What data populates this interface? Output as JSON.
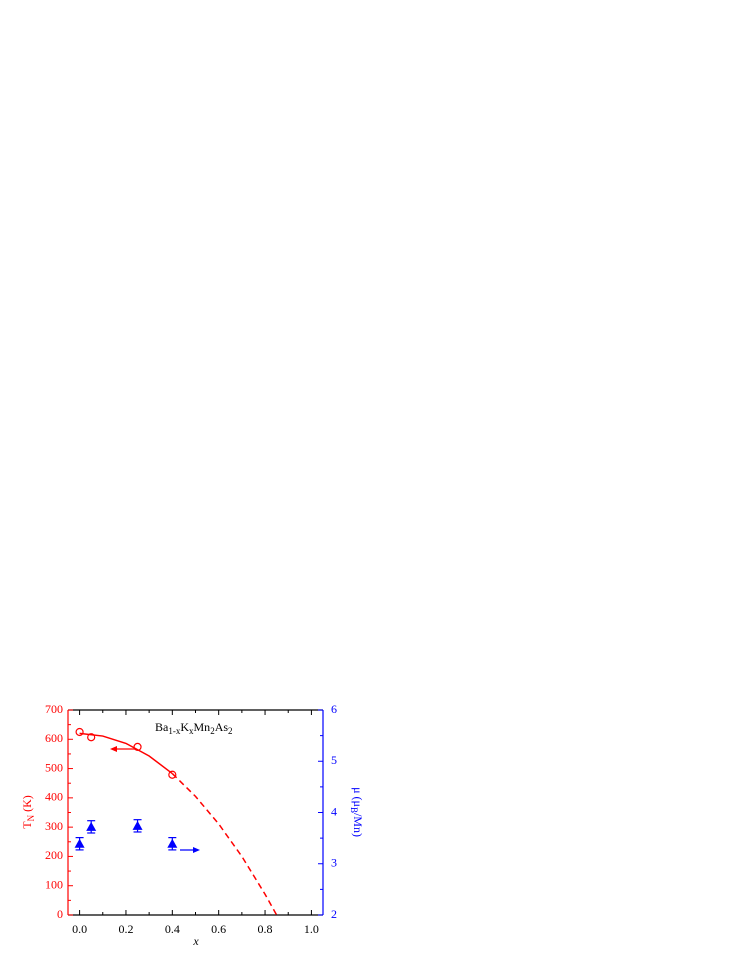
{
  "chart_data": {
    "type": "scatter",
    "annotation": {
      "parts": [
        "Ba",
        "1-x",
        "K",
        "x",
        "Mn",
        "2",
        "As",
        "2"
      ]
    },
    "xlabel": "x",
    "ylabel": {
      "parts": [
        "T",
        "N",
        " (K)"
      ]
    },
    "y2label": {
      "parts": [
        "μ (μ",
        "B",
        "/Mn)"
      ]
    },
    "xlim": [
      -0.05,
      1.05
    ],
    "xticks": [
      {
        "value": 0,
        "label": "0.0"
      },
      {
        "value": 0.2,
        "label": "0.2"
      },
      {
        "value": 0.4,
        "label": "0.4"
      },
      {
        "value": 0.6,
        "label": "0.6"
      },
      {
        "value": 0.8,
        "label": "0.8"
      },
      {
        "value": 1,
        "label": "1.0"
      }
    ],
    "ylim": [
      0,
      700
    ],
    "yticks": [
      0,
      100,
      200,
      300,
      400,
      500,
      600,
      700
    ],
    "y2lim": [
      2,
      6
    ],
    "y2ticks": [
      2,
      3,
      4,
      5,
      6
    ],
    "series": [
      {
        "color": "#ff0000",
        "marker": "open-circle",
        "x": [
          0,
          0.05,
          0.25,
          0.4
        ],
        "values": [
          625,
          607,
          574,
          479
        ]
      },
      {
        "color": "#ff0000",
        "line": "solid",
        "x": [
          0,
          0.1,
          0.2,
          0.3,
          0.4
        ],
        "values": [
          620,
          611,
          586,
          543,
          483
        ]
      },
      {
        "color": "#ff0000",
        "line": "dashed",
        "x": [
          0.4,
          0.5,
          0.6,
          0.7,
          0.8,
          0.85
        ],
        "values": [
          483,
          405,
          311,
          200,
          71,
          0
        ]
      },
      {
        "color": "#0000ff",
        "marker": "filled-triangle",
        "axis": "y2",
        "x": [
          0,
          0.05,
          0.25,
          0.4
        ],
        "values": [
          3.39,
          3.72,
          3.74,
          3.39
        ],
        "errors": [
          0.12,
          0.12,
          0.12,
          0.12
        ]
      }
    ]
  }
}
